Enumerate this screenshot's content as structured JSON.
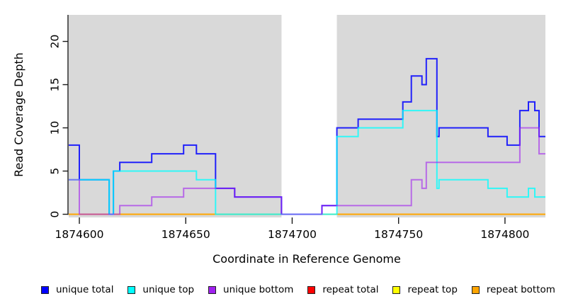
{
  "chart_data": {
    "type": "line",
    "subtype": "step-coverage",
    "title": "",
    "xlabel": "Coordinate in Reference Genome",
    "ylabel": "Read Coverage Depth",
    "xlim": [
      1874595,
      1874819
    ],
    "ylim": [
      0,
      23
    ],
    "x_ticks": [
      1874600,
      1874650,
      1874700,
      1874750,
      1874800
    ],
    "y_ticks": [
      0,
      5,
      10,
      15,
      20
    ],
    "grid": false,
    "legend_position": "bottom",
    "plot_bg": "#d9d9d9",
    "page_bg": "#ffffff",
    "axis_color": "#1a1a1a",
    "gap_region": {
      "start": 1874695,
      "end": 1874721
    },
    "series": [
      {
        "name": "repeat total",
        "color": "#ff0000",
        "opacity": 1.0,
        "steps": [
          [
            1874595,
            0
          ]
        ]
      },
      {
        "name": "repeat top",
        "color": "#ffff00",
        "opacity": 1.0,
        "steps": [
          [
            1874595,
            0
          ]
        ]
      },
      {
        "name": "repeat bottom",
        "color": "#ffa500",
        "opacity": 1.0,
        "steps": [
          [
            1874595,
            0
          ]
        ]
      },
      {
        "name": "unique total",
        "color": "#0000ff",
        "opacity": 0.85,
        "steps": [
          [
            1874595,
            8
          ],
          [
            1874600,
            4
          ],
          [
            1874614,
            0
          ],
          [
            1874616,
            5
          ],
          [
            1874619,
            6
          ],
          [
            1874634,
            7
          ],
          [
            1874649,
            8
          ],
          [
            1874655,
            7
          ],
          [
            1874664,
            3
          ],
          [
            1874673,
            2
          ],
          [
            1874695,
            0
          ],
          [
            1874714,
            1
          ],
          [
            1874721,
            10
          ],
          [
            1874731,
            11
          ],
          [
            1874752,
            13
          ],
          [
            1874756,
            16
          ],
          [
            1874761,
            15
          ],
          [
            1874763,
            18
          ],
          [
            1874768,
            9
          ],
          [
            1874769,
            10
          ],
          [
            1874792,
            9
          ],
          [
            1874801,
            8
          ],
          [
            1874807,
            12
          ],
          [
            1874811,
            13
          ],
          [
            1874814,
            12
          ],
          [
            1874816,
            9
          ]
        ]
      },
      {
        "name": "unique top",
        "color": "#00ffff",
        "opacity": 0.78,
        "steps": [
          [
            1874595,
            4
          ],
          [
            1874614,
            0
          ],
          [
            1874616,
            5
          ],
          [
            1874655,
            4
          ],
          [
            1874664,
            0
          ],
          [
            1874721,
            9
          ],
          [
            1874731,
            10
          ],
          [
            1874752,
            12
          ],
          [
            1874768,
            3
          ],
          [
            1874769,
            4
          ],
          [
            1874792,
            3
          ],
          [
            1874801,
            2
          ],
          [
            1874811,
            3
          ],
          [
            1874814,
            2
          ]
        ]
      },
      {
        "name": "unique bottom",
        "color": "#a020f0",
        "opacity": 0.6,
        "steps": [
          [
            1874595,
            4
          ],
          [
            1874600,
            0
          ],
          [
            1874619,
            1
          ],
          [
            1874634,
            2
          ],
          [
            1874649,
            3
          ],
          [
            1874673,
            2
          ],
          [
            1874695,
            0
          ],
          [
            1874714,
            1
          ],
          [
            1874756,
            4
          ],
          [
            1874761,
            3
          ],
          [
            1874763,
            6
          ],
          [
            1874807,
            10
          ],
          [
            1874816,
            7
          ]
        ]
      }
    ],
    "legend": [
      {
        "label": "unique total",
        "color": "#0000ff"
      },
      {
        "label": "unique top",
        "color": "#00ffff"
      },
      {
        "label": "unique bottom",
        "color": "#a020f0"
      },
      {
        "label": "repeat total",
        "color": "#ff0000"
      },
      {
        "label": "repeat top",
        "color": "#ffff00"
      },
      {
        "label": "repeat bottom",
        "color": "#ffa500"
      }
    ]
  }
}
